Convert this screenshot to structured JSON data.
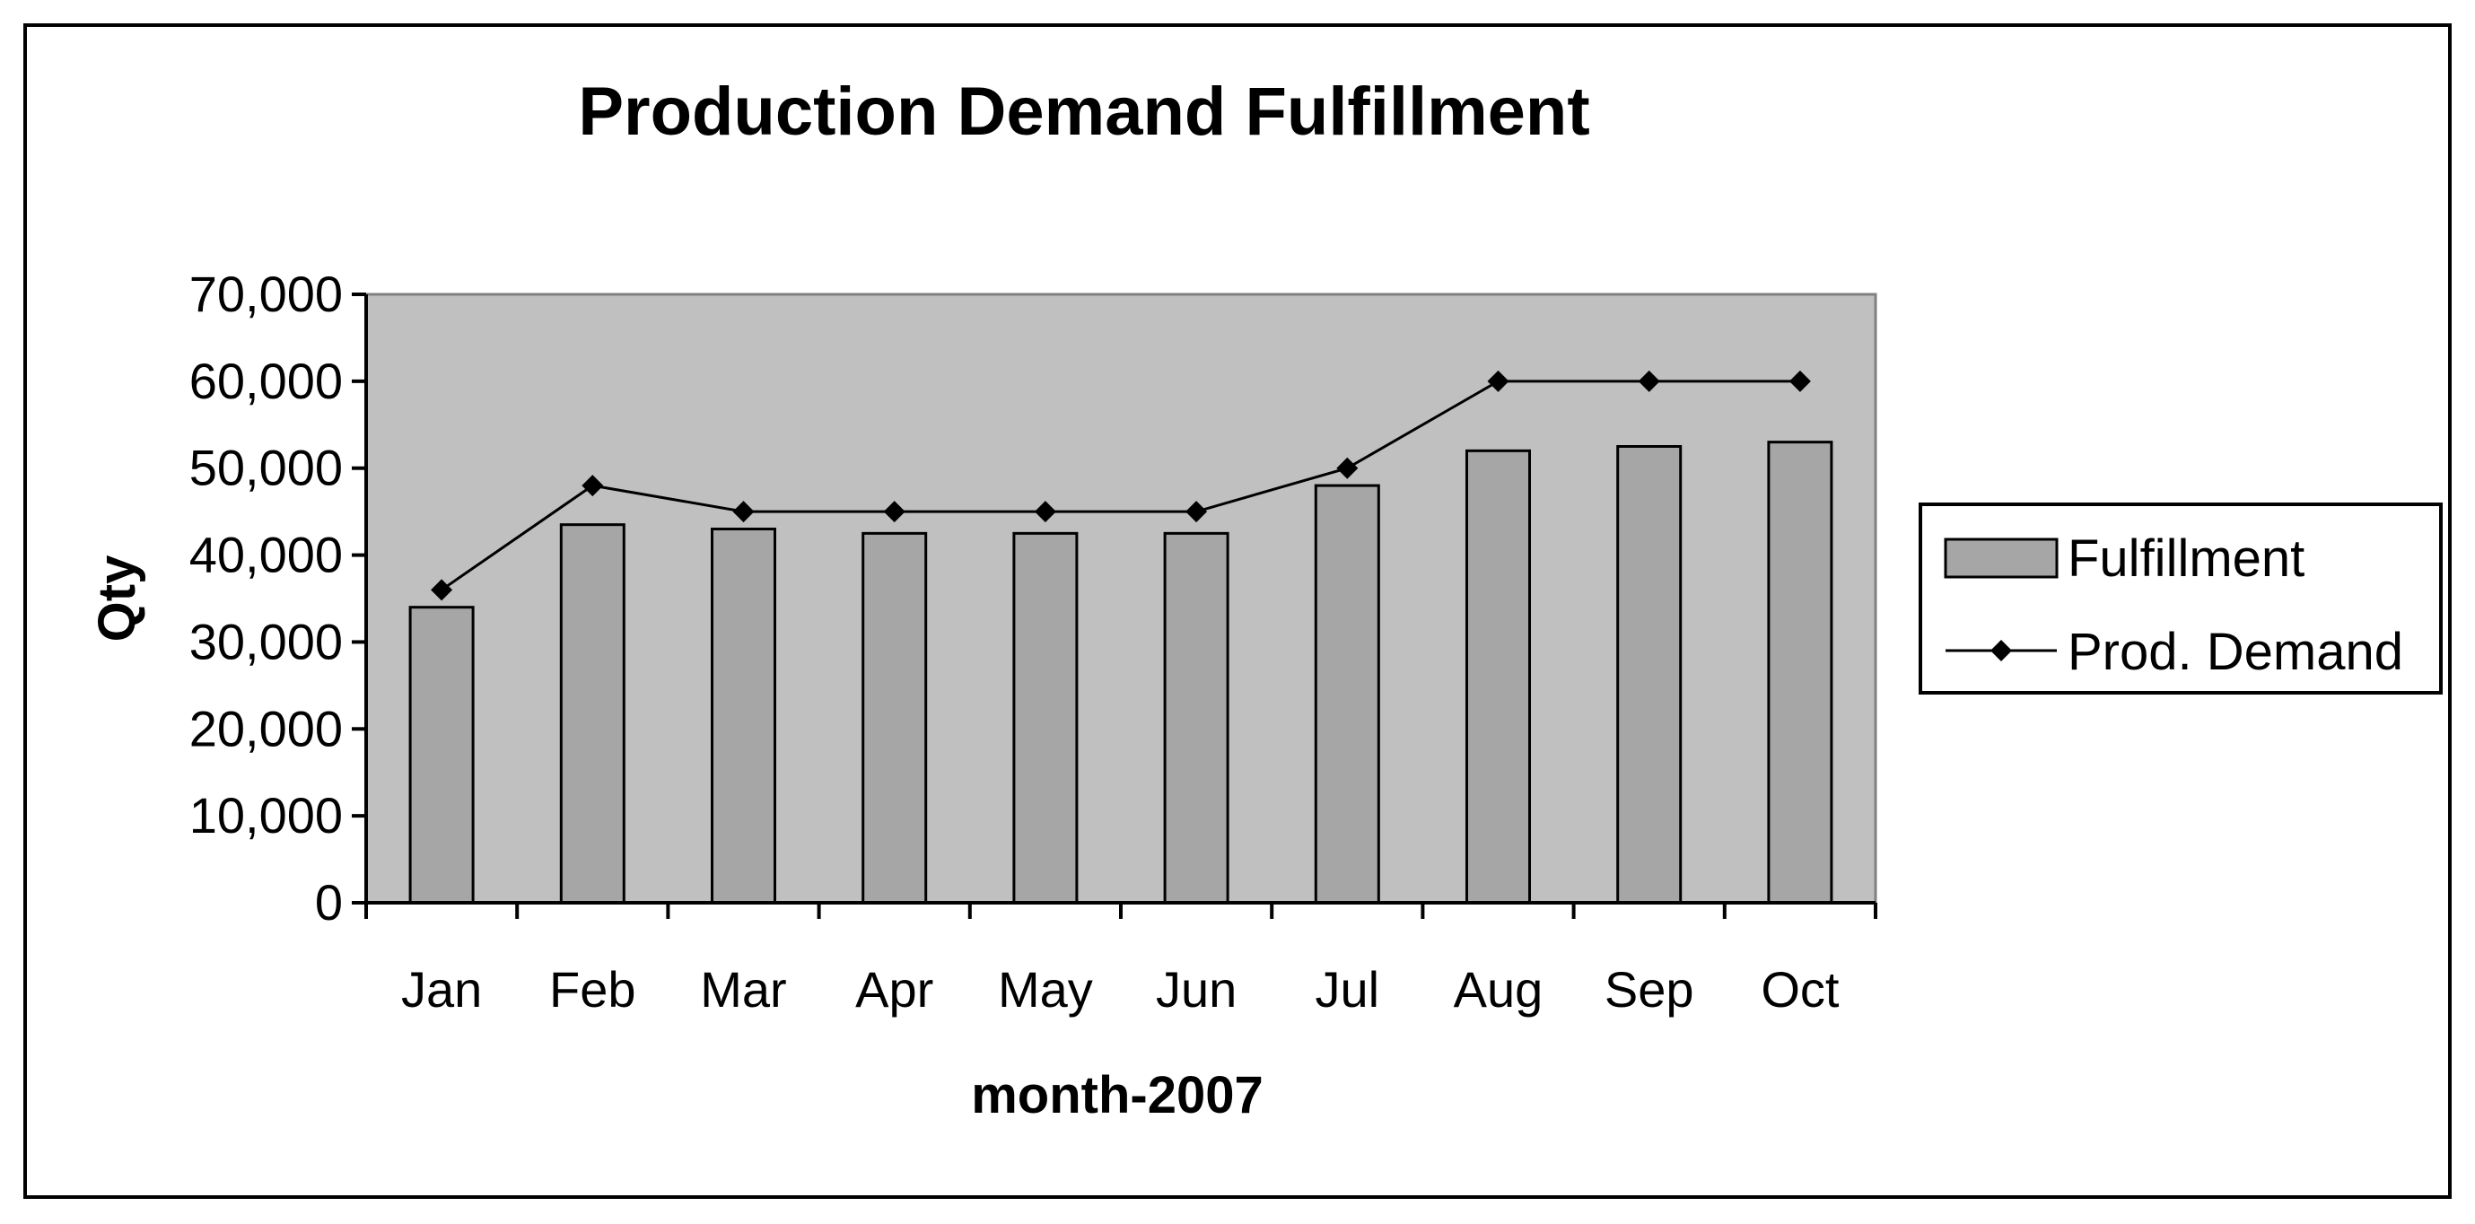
{
  "chart_data": {
    "type": "bar",
    "title": "Production Demand Fulfillment",
    "xlabel": "month-2007",
    "ylabel": "Qty",
    "categories": [
      "Jan",
      "Feb",
      "Mar",
      "Apr",
      "May",
      "Jun",
      "Jul",
      "Aug",
      "Sep",
      "Oct"
    ],
    "ylim": [
      0,
      70000
    ],
    "yticks": [
      0,
      10000,
      20000,
      30000,
      40000,
      50000,
      60000,
      70000
    ],
    "ytick_labels": [
      "0",
      "10,000",
      "20,000",
      "30,000",
      "40,000",
      "50,000",
      "60,000",
      "70,000"
    ],
    "series": [
      {
        "name": "Fulfillment",
        "type": "bar",
        "color": "#a6a6a6",
        "values": [
          34000,
          43500,
          43000,
          42500,
          42500,
          42500,
          48000,
          52000,
          52500,
          53000
        ]
      },
      {
        "name": "Prod. Demand",
        "type": "line",
        "color": "#000000",
        "marker": "diamond",
        "values": [
          36000,
          48000,
          45000,
          45000,
          45000,
          45000,
          50000,
          60000,
          60000,
          60000
        ]
      }
    ],
    "plot_background": "#c0c0c0",
    "grid": false,
    "legend_position": "right"
  }
}
